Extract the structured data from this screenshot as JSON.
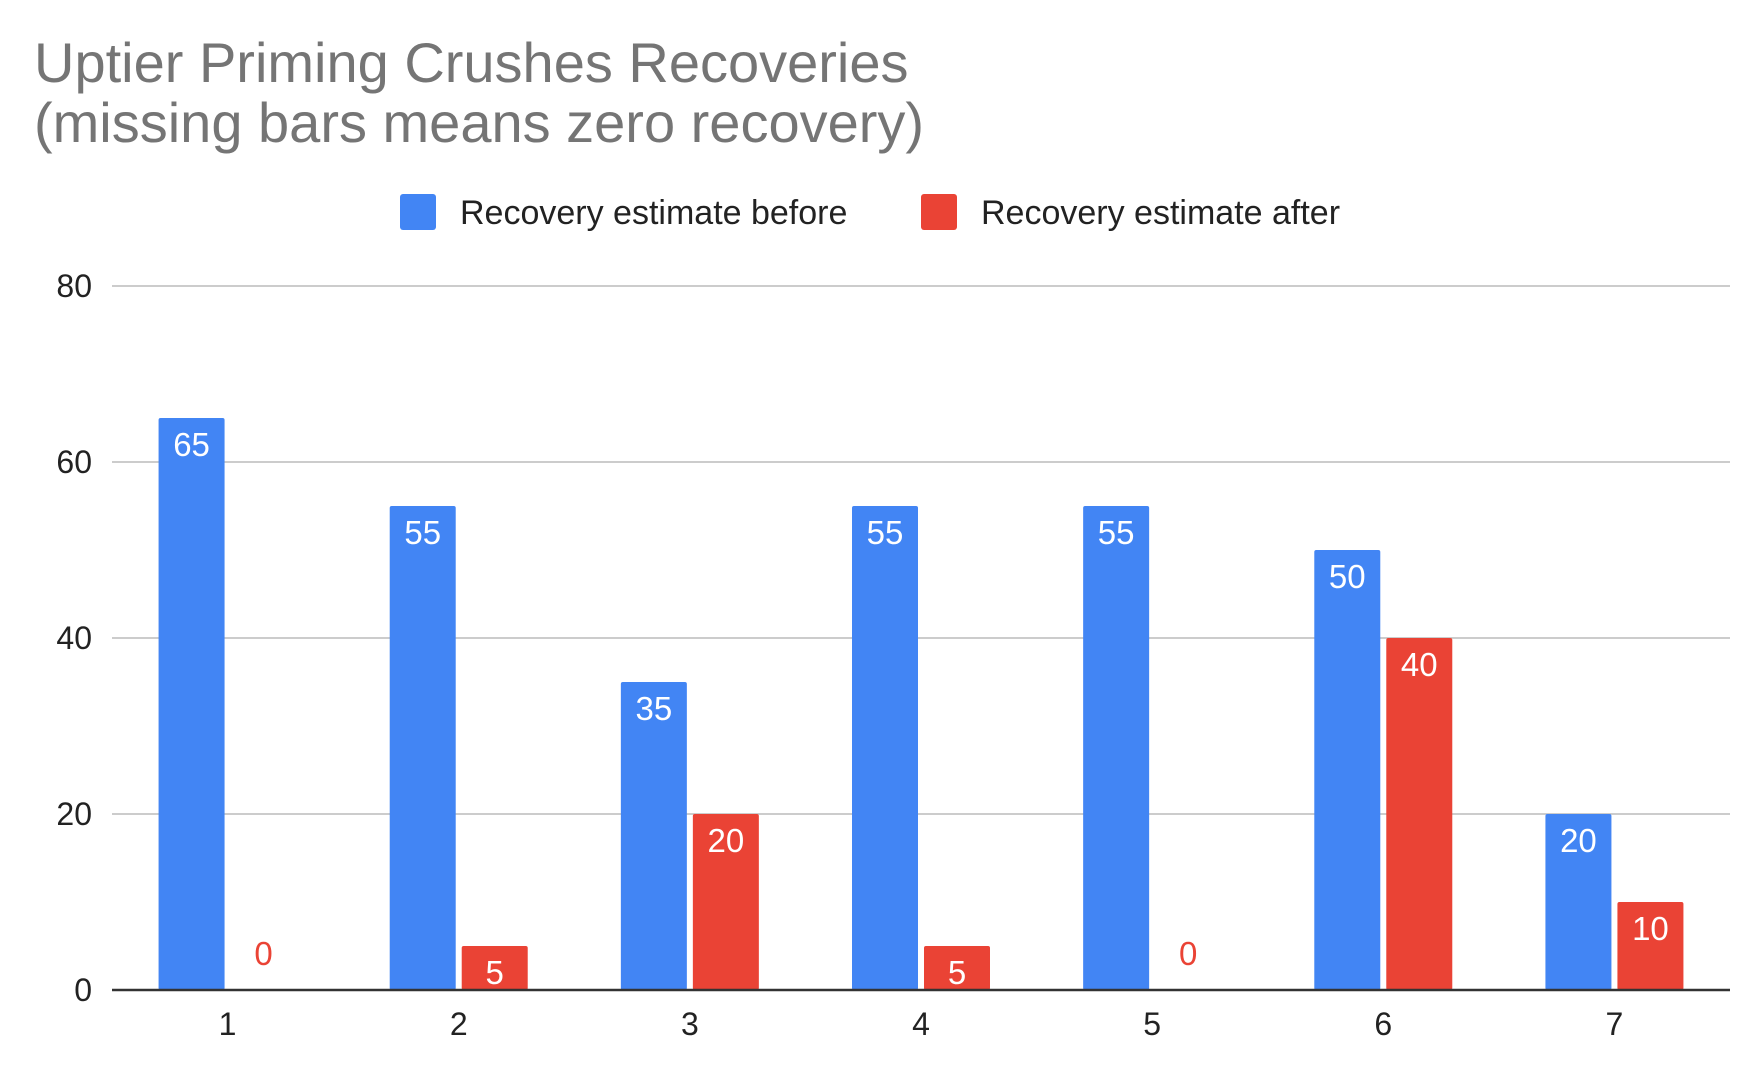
{
  "chart_data": {
    "type": "bar",
    "title": "Uptier Priming Crushes Recoveries",
    "subtitle": "(missing bars means zero recovery)",
    "categories": [
      "1",
      "2",
      "3",
      "4",
      "5",
      "6",
      "7"
    ],
    "series": [
      {
        "name": "Recovery estimate before",
        "color": "#4285F4",
        "values": [
          65,
          55,
          35,
          55,
          55,
          50,
          20
        ]
      },
      {
        "name": "Recovery estimate after",
        "color": "#EA4335",
        "values": [
          0,
          5,
          20,
          5,
          0,
          40,
          10
        ]
      }
    ],
    "xlabel": "",
    "ylabel": "",
    "ylim": [
      0,
      80
    ],
    "yticks": [
      0,
      20,
      40,
      60,
      80
    ],
    "grid": true,
    "legend_position": "top-center",
    "data_labels": true
  }
}
